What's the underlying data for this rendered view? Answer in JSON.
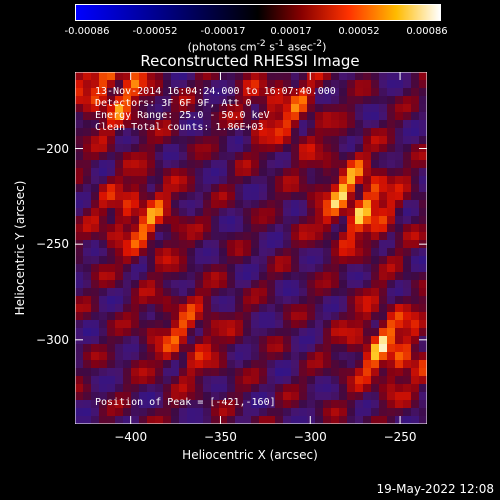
{
  "colorbar": {
    "ticks": [
      "-0.00086",
      "-0.00052",
      "-0.00017",
      "0.00017",
      "0.00052",
      "0.00086"
    ],
    "unit_html": "(photons cm<sup>-2</sup> s<sup>-1</sup> asec<sup>-2</sup>)"
  },
  "info": {
    "line1": "13-Nov-2014 16:04:24.000 to 16:07:40.000",
    "line2": "Detectors: 3F 6F 9F, Att 0",
    "line3": "Energy Range: 25.0 - 50.0 keV",
    "line4": "Clean    Total counts: 1.86E+03",
    "peak": "Position of Peak = [-421,-160]"
  },
  "footer": {
    "date": "19-May-2022 12:08"
  },
  "chart_data": {
    "type": "heatmap",
    "title": "Reconstructed RHESSI Image",
    "xlabel": "Heliocentric X (arcsec)",
    "ylabel": "Heliocentric Y (arcsec)",
    "xlim": [
      -431,
      -235
    ],
    "ylim": [
      -344,
      -160
    ],
    "xticks": [
      -400,
      -350,
      -300,
      -250
    ],
    "yticks": [
      -200,
      -250,
      -300
    ],
    "ytick_labels": [
      "−200",
      "−250",
      "−300"
    ],
    "xtick_labels": [
      "−400",
      "−350",
      "−300",
      "−250"
    ],
    "zlim": [
      -0.00086,
      0.00086
    ],
    "colormap": "blue-purple-red-yellow-white",
    "peak_position": [
      -421,
      -160
    ],
    "bright_regions": [
      {
        "x": -274,
        "y": -228,
        "level": 0.95
      },
      {
        "x": -395,
        "y": -236,
        "level": 0.7
      },
      {
        "x": -411,
        "y": -168,
        "level": 0.8
      },
      {
        "x": -256,
        "y": -304,
        "level": 0.85
      },
      {
        "x": -315,
        "y": -180,
        "level": 0.6
      },
      {
        "x": -370,
        "y": -298,
        "level": 0.55
      }
    ]
  }
}
